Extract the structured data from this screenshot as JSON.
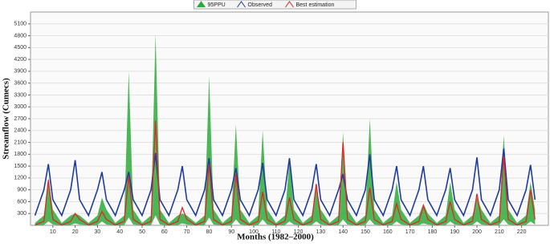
{
  "chart_data": {
    "type": "band-line",
    "x_label": "Months (1982–2000)",
    "y_label": "Streamflow (Cumecs)",
    "xlim": [
      0,
      232
    ],
    "xticks": [
      10,
      20,
      30,
      40,
      50,
      60,
      70,
      80,
      90,
      100,
      110,
      120,
      130,
      140,
      150,
      160,
      170,
      180,
      190,
      200,
      210,
      220
    ],
    "ylim": [
      0,
      5400
    ],
    "yticks": [
      300,
      600,
      900,
      1200,
      1500,
      1800,
      2100,
      2400,
      2700,
      3000,
      3300,
      3600,
      3900,
      4200,
      4500,
      4800,
      5100
    ],
    "grid": true,
    "legend": "top",
    "x": [
      2,
      6,
      8,
      10,
      14,
      18,
      20,
      22,
      26,
      30,
      32,
      34,
      38,
      42,
      44,
      46,
      50,
      54,
      56,
      58,
      62,
      66,
      68,
      70,
      74,
      78,
      80,
      82,
      86,
      90,
      92,
      94,
      98,
      102,
      104,
      106,
      110,
      114,
      116,
      118,
      122,
      126,
      128,
      130,
      134,
      138,
      140,
      142,
      146,
      150,
      152,
      154,
      158,
      162,
      164,
      166,
      170,
      174,
      176,
      178,
      182,
      186,
      188,
      190,
      194,
      198,
      200,
      202,
      206,
      210,
      212,
      214,
      218,
      222,
      224,
      226
    ],
    "series": [
      {
        "name": "95PPU",
        "color": "#2eaa3a",
        "upper": [
          60,
          250,
          1200,
          400,
          60,
          250,
          300,
          250,
          60,
          250,
          700,
          400,
          60,
          250,
          3900,
          400,
          60,
          250,
          4850,
          400,
          60,
          250,
          300,
          250,
          60,
          250,
          3780,
          400,
          60,
          250,
          2550,
          400,
          60,
          250,
          2400,
          400,
          60,
          250,
          1650,
          400,
          60,
          250,
          950,
          400,
          60,
          250,
          2350,
          400,
          60,
          250,
          2700,
          400,
          60,
          250,
          1100,
          400,
          60,
          250,
          550,
          300,
          60,
          250,
          1100,
          400,
          60,
          250,
          700,
          400,
          60,
          250,
          2280,
          400,
          60,
          250,
          1100,
          400
        ],
        "lower": [
          0,
          10,
          100,
          20,
          0,
          10,
          50,
          20,
          0,
          10,
          100,
          20,
          0,
          10,
          200,
          20,
          0,
          10,
          250,
          20,
          0,
          10,
          50,
          20,
          0,
          10,
          200,
          20,
          0,
          10,
          150,
          20,
          0,
          10,
          150,
          20,
          0,
          10,
          100,
          20,
          0,
          10,
          100,
          20,
          0,
          10,
          150,
          20,
          0,
          10,
          150,
          20,
          0,
          10,
          100,
          20,
          0,
          10,
          50,
          20,
          0,
          10,
          100,
          20,
          0,
          10,
          100,
          20,
          0,
          10,
          150,
          20,
          0,
          10,
          100,
          20
        ]
      },
      {
        "name": "Observed",
        "color": "#1f3b9e",
        "values": [
          250,
          900,
          1550,
          650,
          250,
          900,
          1650,
          650,
          250,
          900,
          1350,
          650,
          250,
          900,
          1350,
          650,
          250,
          900,
          1830,
          650,
          250,
          900,
          1500,
          650,
          250,
          900,
          1700,
          650,
          250,
          900,
          1450,
          650,
          250,
          900,
          1580,
          650,
          250,
          900,
          1700,
          650,
          250,
          900,
          1550,
          650,
          250,
          900,
          1300,
          650,
          250,
          900,
          1800,
          650,
          250,
          900,
          1500,
          650,
          250,
          900,
          1500,
          650,
          250,
          900,
          1450,
          650,
          250,
          900,
          1720,
          650,
          250,
          900,
          1950,
          650,
          250,
          900,
          1530,
          650
        ]
      },
      {
        "name": "Best estimation",
        "color": "#e0262a",
        "values": [
          10,
          100,
          1150,
          150,
          10,
          100,
          300,
          150,
          10,
          100,
          350,
          150,
          10,
          100,
          1250,
          150,
          10,
          100,
          2650,
          150,
          10,
          100,
          450,
          150,
          10,
          100,
          1550,
          150,
          10,
          100,
          1300,
          150,
          10,
          100,
          850,
          150,
          10,
          100,
          700,
          150,
          10,
          100,
          1050,
          150,
          10,
          100,
          2100,
          150,
          10,
          100,
          950,
          150,
          10,
          100,
          550,
          150,
          10,
          100,
          500,
          150,
          10,
          100,
          600,
          150,
          10,
          100,
          800,
          150,
          10,
          100,
          1750,
          150,
          10,
          100,
          900,
          150
        ]
      }
    ]
  }
}
